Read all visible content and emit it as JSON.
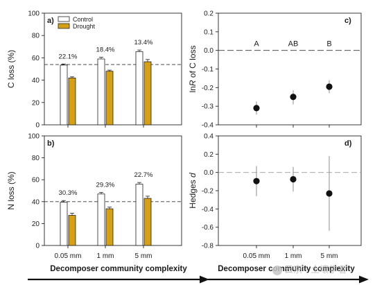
{
  "chart_data": [
    {
      "panel": "a)",
      "type": "bar",
      "ylabel": "C loss (%)",
      "ylim": [
        0,
        100
      ],
      "yticks": [
        0,
        20,
        40,
        60,
        80,
        100
      ],
      "categories": [
        "0.05 mm",
        "1 mm",
        "5 mm"
      ],
      "series": [
        {
          "name": "Control",
          "color": "#ffffff",
          "values": [
            53.5,
            59,
            65.5
          ],
          "errors": [
            1,
            1.5,
            1.5
          ]
        },
        {
          "name": "Drought",
          "color": "#d4a017",
          "values": [
            42,
            48,
            56.5
          ],
          "errors": [
            1,
            1,
            2
          ]
        }
      ],
      "annotations": [
        "22.1%",
        "18.4%",
        "13.4%"
      ],
      "reference_line": 54,
      "legend_position": "top-left"
    },
    {
      "panel": "b)",
      "type": "bar",
      "ylabel": "N loss (%)",
      "ylim": [
        0,
        100
      ],
      "yticks": [
        0,
        20,
        40,
        60,
        80,
        100
      ],
      "categories": [
        "0.05 mm",
        "1 mm",
        "5 mm"
      ],
      "series": [
        {
          "name": "Control",
          "color": "#ffffff",
          "values": [
            39.5,
            47,
            56
          ],
          "errors": [
            1.5,
            1.5,
            1.5
          ]
        },
        {
          "name": "Drought",
          "color": "#d4a017",
          "values": [
            27.5,
            33.5,
            43
          ],
          "errors": [
            2,
            1.5,
            2
          ]
        }
      ],
      "annotations": [
        "30.3%",
        "29.3%",
        "22.7%"
      ],
      "reference_line": 40
    },
    {
      "panel": "c)",
      "type": "scatter",
      "ylabel_prefix": "ln",
      "ylabel_italic": "R",
      "ylabel_suffix": " of C loss",
      "ylim": [
        -0.4,
        0.2
      ],
      "yticks": [
        "-0.4",
        "-0.3",
        "-0.2",
        "-0.1",
        "0.0",
        "0.1",
        "0.2"
      ],
      "categories": [
        "0.05 mm",
        "1 mm",
        "5 mm"
      ],
      "values": [
        -0.31,
        -0.25,
        -0.195
      ],
      "ci": [
        [
          -0.345,
          -0.275
        ],
        [
          -0.29,
          -0.215
        ],
        [
          -0.23,
          -0.16
        ]
      ],
      "letters": [
        "A",
        "AB",
        "B"
      ],
      "reference_line": 0
    },
    {
      "panel": "d)",
      "type": "scatter",
      "ylabel_prefix": "Hedges ",
      "ylabel_italic": "d",
      "ylim": [
        -0.8,
        0.4
      ],
      "yticks": [
        "-0.8",
        "-0.6",
        "-0.4",
        "-0.2",
        "0.0",
        "0.2",
        "0.4"
      ],
      "categories": [
        "0.05 mm",
        "1 mm",
        "5 mm"
      ],
      "values": [
        -0.095,
        -0.075,
        -0.23
      ],
      "ci": [
        [
          -0.26,
          0.07
        ],
        [
          -0.21,
          0.06
        ],
        [
          -0.64,
          0.18
        ]
      ],
      "reference_line": 0
    }
  ],
  "xlabel_left": "Decomposer community complexity",
  "xlabel_right": "Decomposer community complexity",
  "watermark": "云京 · 土壤学者"
}
